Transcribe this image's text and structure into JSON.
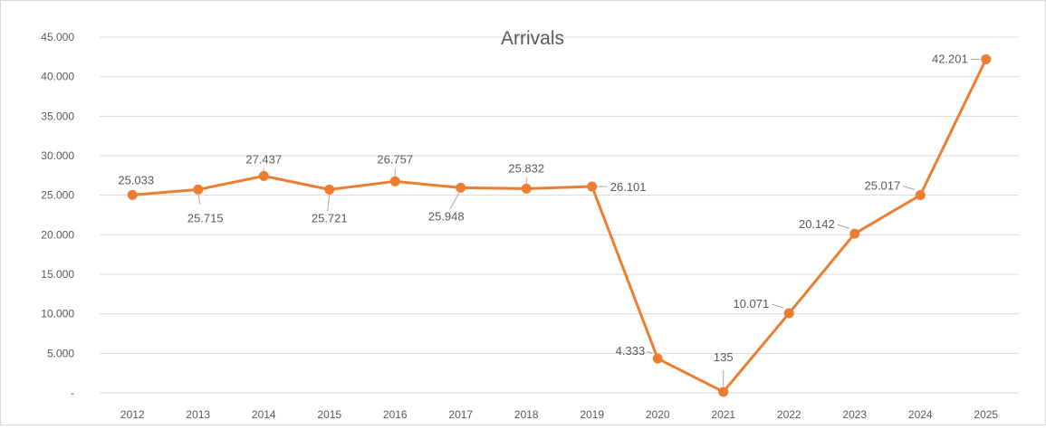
{
  "chart_data": {
    "type": "line",
    "title": "Arrivals",
    "xlabel": "",
    "ylabel": "",
    "categories": [
      "2012",
      "2013",
      "2014",
      "2015",
      "2016",
      "2017",
      "2018",
      "2019",
      "2020",
      "2021",
      "2022",
      "2023",
      "2024",
      "2025"
    ],
    "series": [
      {
        "values": [
          25033,
          25715,
          27437,
          25721,
          26757,
          25948,
          25832,
          26101,
          4333,
          135,
          10071,
          20142,
          25017,
          42201
        ],
        "labels": [
          "25.033",
          "25.715",
          "27.437",
          "25.721",
          "26.757",
          "25.948",
          "25.832",
          "26.101",
          "4.333",
          "135",
          "10.071",
          "20.142",
          "25.017",
          "42.201"
        ]
      }
    ],
    "ylim": [
      0,
      45000
    ],
    "yticks": [
      0,
      5000,
      10000,
      15000,
      20000,
      25000,
      30000,
      35000,
      40000,
      45000
    ],
    "ytick_labels": [
      "-",
      "5.000",
      "10.000",
      "15.000",
      "20.000",
      "25.000",
      "30.000",
      "35.000",
      "40.000",
      "45.000"
    ],
    "grid": true,
    "legend": "none",
    "colors": {
      "line": "#ED7D31",
      "grid": "#D9D9D9",
      "text": "#595959",
      "title": "#595959",
      "leader": "#A6A6A6"
    }
  }
}
